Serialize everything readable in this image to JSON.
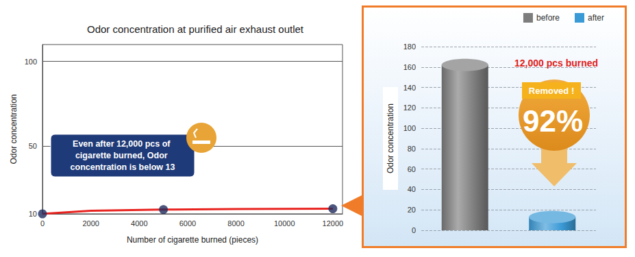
{
  "chart_data": [
    {
      "type": "line",
      "title": "Odor concentration at purified air exhaust outlet",
      "x_label": "Number of cigarette burned (pieces)",
      "y_label": "Odor concentration",
      "series": [
        {
          "type": "line",
          "color": "#e8231f",
          "marker": "none",
          "line_style": "solid",
          "x": [
            0,
            2000,
            5000,
            8000,
            12000
          ],
          "values": [
            10,
            11.8,
            12.5,
            12.8,
            13
          ]
        },
        {
          "type": "scatter",
          "color": "#1f2a5c",
          "marker": "circle",
          "x": [
            0,
            5000,
            12000
          ],
          "values": [
            10,
            12.5,
            13
          ]
        }
      ],
      "xlim": [
        0,
        12400
      ],
      "xticks": [
        0,
        2000,
        4000,
        6000,
        8000,
        10000,
        12000
      ],
      "ylim": [
        10,
        110
      ],
      "yticks": [
        10,
        50,
        100
      ],
      "grid": true,
      "annotations": [
        "Even after 12,000 pcs of cigarette burned, Odor concentration is below 13"
      ]
    },
    {
      "type": "bar",
      "y_label": "Odor concentration",
      "categories": [
        null,
        null
      ],
      "series": [
        {
          "name": "before",
          "color": "#7d7d7d",
          "values": [
            162,
            null
          ]
        },
        {
          "name": "after",
          "color": "#3a9ad6",
          "values": [
            null,
            13
          ]
        }
      ],
      "ylim": [
        0,
        180
      ],
      "yticks": [
        0,
        20,
        40,
        60,
        80,
        100,
        120,
        140,
        160,
        180
      ],
      "grid": true,
      "legend": "top-right",
      "tick_labels": "y",
      "annotations": [
        "12,000 pcs burned",
        "Removed !",
        "92%"
      ]
    }
  ]
}
